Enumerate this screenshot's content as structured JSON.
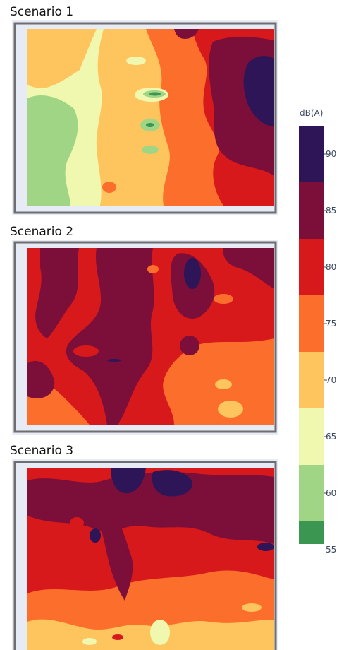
{
  "chart_data": [
    {
      "type": "heatmap",
      "subtype": "contour",
      "title": "Scenario 1",
      "dominant_levels": [
        "65-70",
        "70-75",
        "75-80",
        "85-90"
      ],
      "min_level": "55-60",
      "max_level": "90+"
    },
    {
      "type": "heatmap",
      "subtype": "contour",
      "title": "Scenario 2",
      "dominant_levels": [
        "80-85",
        "85-90",
        "75-80"
      ],
      "min_level": "70-75",
      "max_level": "90+"
    },
    {
      "type": "heatmap",
      "subtype": "contour",
      "title": "Scenario 3",
      "dominant_levels": [
        "80-85",
        "85-90",
        "75-80",
        "70-75"
      ],
      "min_level": "65-70",
      "max_level": "90+"
    }
  ],
  "colorbar": {
    "title": "dB(A)",
    "ticks": [
      "90",
      "85",
      "80",
      "75",
      "70",
      "65",
      "60",
      "55"
    ],
    "bands": [
      {
        "range": "90+",
        "color": "#2d1557"
      },
      {
        "range": "85-90",
        "color": "#7b0f3a"
      },
      {
        "range": "80-85",
        "color": "#d7191c"
      },
      {
        "range": "75-80",
        "color": "#fc6e2c"
      },
      {
        "range": "70-75",
        "color": "#fec55f"
      },
      {
        "range": "65-70",
        "color": "#f0f8b0"
      },
      {
        "range": "60-65",
        "color": "#a0d586"
      },
      {
        "range": "55-60",
        "color": "#3a9650"
      }
    ]
  }
}
